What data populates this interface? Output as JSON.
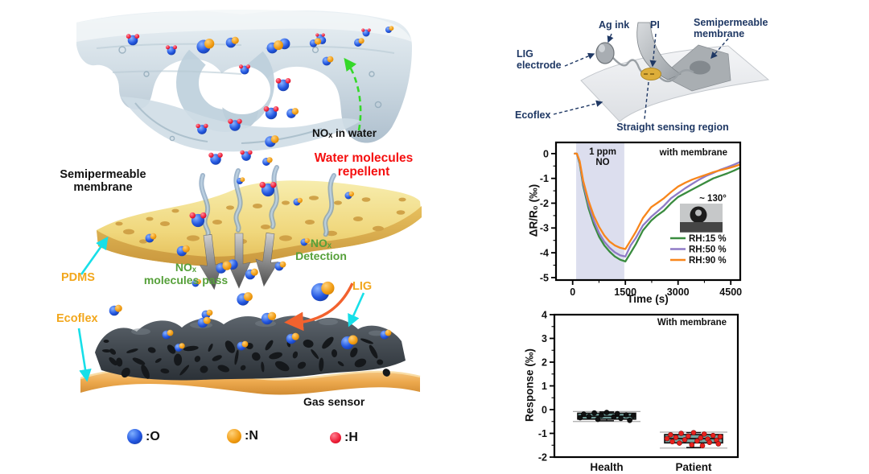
{
  "colors": {
    "navy": "#1f3864",
    "green_label": "#56a03a",
    "red_label": "#f50f0f",
    "gold_label": "#f2a71d",
    "cyan_arrow": "#17dfe8",
    "black": "#111111"
  },
  "mechanism_panel": {
    "nox_in_water": "NOₓ in water",
    "water_repellent": "Water molecules\nrepellent",
    "semipermeable_membrane": "Semipermeable\nmembrane",
    "pdms": "PDMS",
    "ecoflex": "Ecoflex",
    "lig": "LIG",
    "nox_pass": "NOₓ\nmolecules pass",
    "nox_detection": "NOₓ\nDetection",
    "gas_sensor": "Gas sensor",
    "atom_legend": [
      {
        "label": ":O",
        "atom": "oxygen",
        "color": "#2256e0"
      },
      {
        "label": ":N",
        "atom": "nitrogen",
        "color": "#f09a10"
      },
      {
        "label": ":H",
        "atom": "hydrogen",
        "color": "#ee1d36"
      }
    ]
  },
  "device_panel": {
    "ag_ink": "Ag ink",
    "pi": "PI",
    "semipermeable_membrane": "Semipermeable\nmembrane",
    "lig_electrode": "LIG\nelectrode",
    "ecoflex": "Ecoflex",
    "sensing_region": "Straight sensing region"
  },
  "chart_data": [
    {
      "type": "line",
      "xlabel": "Time (s)",
      "ylabel": "ΔR/R₀ (‰)",
      "xlim": [
        -474,
        4770
      ],
      "ylim": [
        -5.1,
        0.45
      ],
      "xticks": [
        0,
        1500,
        3000,
        4500
      ],
      "yticks": [
        0,
        -1,
        -2,
        -3,
        -4,
        -5
      ],
      "band": {
        "x0": 100,
        "x1": 1470,
        "color": "#dcdeee"
      },
      "annotations": {
        "gas": "1 ppm\nNO",
        "condition": "with membrane",
        "contact_angle": "~ 130°"
      },
      "legend_position": "lower right",
      "x": [
        60,
        120,
        200,
        300,
        450,
        600,
        750,
        900,
        1050,
        1200,
        1350,
        1500,
        1650,
        1800,
        2000,
        2235,
        2400,
        2600,
        2800,
        3000,
        3200,
        3400,
        3600,
        3800,
        4000,
        4200,
        4400,
        4600,
        4750
      ],
      "series": [
        {
          "name": "RH:15 %",
          "color": "#3a8c3f",
          "values": [
            0,
            0,
            -0.4,
            -1.3,
            -2.2,
            -2.85,
            -3.35,
            -3.7,
            -3.95,
            -4.15,
            -4.28,
            -4.35,
            -4.0,
            -3.65,
            -3.1,
            -2.7,
            -2.5,
            -2.3,
            -2.0,
            -1.75,
            -1.6,
            -1.45,
            -1.3,
            -1.15,
            -1.0,
            -0.9,
            -0.8,
            -0.68,
            -0.58
          ]
        },
        {
          "name": "RH:50 %",
          "color": "#8f7bc6",
          "values": [
            0,
            0,
            -0.35,
            -1.2,
            -2.05,
            -2.7,
            -3.2,
            -3.55,
            -3.8,
            -3.98,
            -4.1,
            -4.15,
            -3.7,
            -3.4,
            -2.9,
            -2.55,
            -2.35,
            -2.1,
            -1.8,
            -1.6,
            -1.4,
            -1.22,
            -1.05,
            -0.9,
            -0.78,
            -0.65,
            -0.55,
            -0.44,
            -0.35
          ]
        },
        {
          "name": "RH:90 %",
          "color": "#f8861b",
          "values": [
            0,
            0,
            -0.3,
            -1.1,
            -1.9,
            -2.5,
            -2.95,
            -3.3,
            -3.55,
            -3.7,
            -3.8,
            -3.85,
            -3.5,
            -3.15,
            -2.6,
            -2.16,
            -2.0,
            -1.8,
            -1.55,
            -1.33,
            -1.18,
            -1.05,
            -0.95,
            -0.85,
            -0.75,
            -0.67,
            -0.6,
            -0.52,
            -0.45
          ]
        }
      ]
    },
    {
      "type": "box",
      "ylabel": "Response (‰)",
      "annotation": "With membrane",
      "ylim": [
        -2,
        4
      ],
      "yticks": [
        4,
        3,
        2,
        1,
        0,
        -1,
        -2
      ],
      "categories": [
        "Health",
        "Patient"
      ],
      "box_fill": "#75a5a1",
      "boxes": [
        {
          "label": "Health",
          "q1": -0.4,
          "median": -0.28,
          "q3": -0.15,
          "whisker_low": -0.47,
          "whisker_high": -0.1,
          "range_low": -0.5,
          "range_high": -0.08,
          "point_color": "#111111",
          "points": [
            -0.12,
            -0.14,
            -0.17,
            -0.19,
            -0.22,
            -0.24,
            -0.26,
            -0.29,
            -0.31,
            -0.34,
            -0.37,
            -0.41,
            -0.45
          ]
        },
        {
          "label": "Patient",
          "q1": -1.4,
          "median": -1.22,
          "q3": -1.05,
          "whisker_low": -1.6,
          "whisker_high": -0.97,
          "range_low": -1.62,
          "range_high": -0.95,
          "point_color": "#e8211d",
          "points": [
            -0.97,
            -1.0,
            -1.03,
            -1.06,
            -1.09,
            -1.12,
            -1.14,
            -1.17,
            -1.19,
            -1.22,
            -1.24,
            -1.27,
            -1.29,
            -1.32,
            -1.35,
            -1.38,
            -1.41,
            -1.44,
            -1.48,
            -1.52
          ]
        }
      ]
    }
  ]
}
